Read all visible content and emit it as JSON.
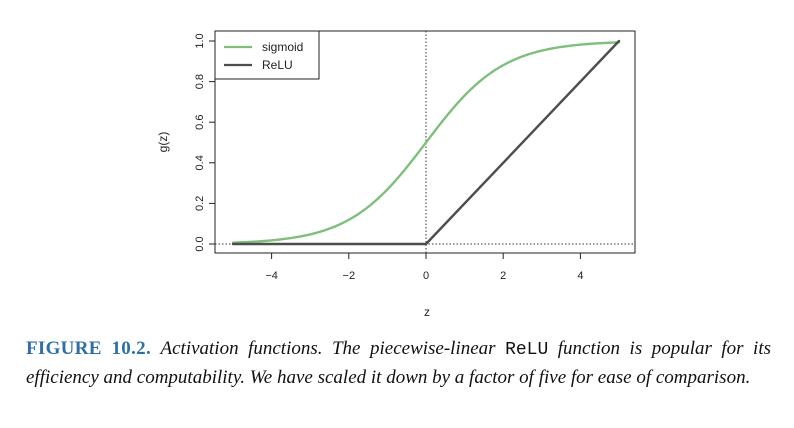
{
  "chart_data": {
    "type": "line",
    "xlabel": "z",
    "ylabel": "g(z)",
    "xlim": [
      -5,
      5
    ],
    "ylim": [
      0,
      1
    ],
    "xticks": [
      -4,
      -2,
      0,
      2,
      4
    ],
    "xtick_labels": [
      "−4",
      "−2",
      "0",
      "2",
      "4"
    ],
    "yticks": [
      0,
      0.2,
      0.4,
      0.6,
      0.8,
      1
    ],
    "ytick_labels": [
      "0.0",
      "0.2",
      "0.4",
      "0.6",
      "0.8",
      "1.0"
    ],
    "reference_lines": [
      {
        "orientation": "vertical",
        "value": 0,
        "style": "dotted"
      },
      {
        "orientation": "horizontal",
        "value": 0,
        "style": "dotted"
      }
    ],
    "legend_position": "top-left",
    "series": [
      {
        "name": "sigmoid",
        "color": "#7fbf7b",
        "function": "1/(1+exp(-z))",
        "x": [
          -5,
          -4,
          -3,
          -2,
          -1,
          0,
          1,
          2,
          3,
          4,
          5
        ],
        "y": [
          0.007,
          0.018,
          0.047,
          0.119,
          0.269,
          0.5,
          0.731,
          0.881,
          0.953,
          0.982,
          0.993
        ]
      },
      {
        "name": "ReLU",
        "color": "#4d4d4d",
        "function": "max(0, z)/5",
        "x": [
          -5,
          0,
          5
        ],
        "y": [
          0,
          0,
          1
        ]
      }
    ]
  },
  "caption": {
    "label": "FIGURE 10.2.",
    "text_before": "Activation functions. The piecewise-linear",
    "code": "ReLU",
    "text_after": "function is popular for its efficiency and computability. We have scaled it down by a factor of five for ease of comparison."
  }
}
